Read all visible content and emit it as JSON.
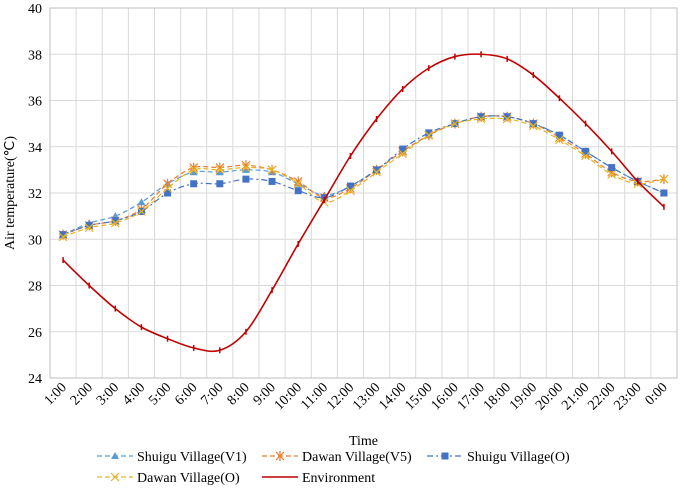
{
  "chart_data": {
    "type": "line",
    "title": "",
    "xlabel": "Time",
    "ylabel": "Air temperature(℃)",
    "ylim": [
      24,
      40
    ],
    "yticks": [
      "24",
      "26",
      "28",
      "30",
      "32",
      "34",
      "36",
      "38",
      "40"
    ],
    "categories": [
      "1:00",
      "2:00",
      "3:00",
      "4:00",
      "5:00",
      "6:00",
      "7:00",
      "8:00",
      "9:00",
      "10:00",
      "11:00",
      "12:00",
      "13:00",
      "14:00",
      "15:00",
      "16:00",
      "17:00",
      "18:00",
      "19:00",
      "20:00",
      "21:00",
      "22:00",
      "23:00",
      "0:00"
    ],
    "grid": true,
    "legend_position": "bottom",
    "series": [
      {
        "name": "Shuigu Village(V1)",
        "color": "#5b9bd5",
        "marker": "triangle",
        "dash": "dashed",
        "values": [
          30.2,
          30.7,
          31.0,
          31.6,
          32.4,
          32.9,
          32.9,
          33.0,
          32.9,
          32.4,
          31.9,
          32.3,
          33.0,
          33.8,
          34.5,
          35.0,
          35.3,
          35.3,
          35.0,
          34.5,
          33.8,
          33.1,
          32.5,
          32.0
        ]
      },
      {
        "name": "Dawan Village(V5)",
        "color": "#ed7d31",
        "marker": "asterisk",
        "dash": "dashed",
        "values": [
          30.2,
          30.6,
          30.8,
          31.3,
          32.4,
          33.1,
          33.1,
          33.2,
          33.0,
          32.5,
          31.8,
          32.2,
          33.0,
          33.8,
          34.5,
          35.0,
          35.3,
          35.3,
          35.0,
          34.4,
          33.7,
          32.9,
          32.5,
          32.6
        ]
      },
      {
        "name": "Shuigu Village(O)",
        "color": "#4472c4",
        "marker": "square",
        "dash": "dashdot",
        "values": [
          30.2,
          30.6,
          30.8,
          31.2,
          32.0,
          32.4,
          32.4,
          32.6,
          32.5,
          32.1,
          31.8,
          32.3,
          33.0,
          33.9,
          34.6,
          35.0,
          35.3,
          35.3,
          35.0,
          34.5,
          33.8,
          33.1,
          32.5,
          32.0
        ]
      },
      {
        "name": "Dawan Village(O)",
        "color": "#e6b422",
        "marker": "x",
        "dash": "dashed",
        "values": [
          30.1,
          30.5,
          30.7,
          31.2,
          32.2,
          33.0,
          33.0,
          33.1,
          33.0,
          32.4,
          31.6,
          32.1,
          32.9,
          33.7,
          34.5,
          35.0,
          35.2,
          35.2,
          34.9,
          34.3,
          33.6,
          32.8,
          32.4,
          32.6
        ]
      },
      {
        "name": "Environment",
        "color": "#c00000",
        "marker": "tick",
        "dash": "solid",
        "values": [
          29.1,
          28.0,
          27.0,
          26.2,
          25.7,
          25.3,
          25.2,
          26.0,
          27.8,
          29.8,
          31.7,
          33.6,
          35.2,
          36.5,
          37.4,
          37.9,
          38.0,
          37.8,
          37.1,
          36.1,
          35.0,
          33.8,
          32.5,
          31.4
        ]
      }
    ]
  }
}
